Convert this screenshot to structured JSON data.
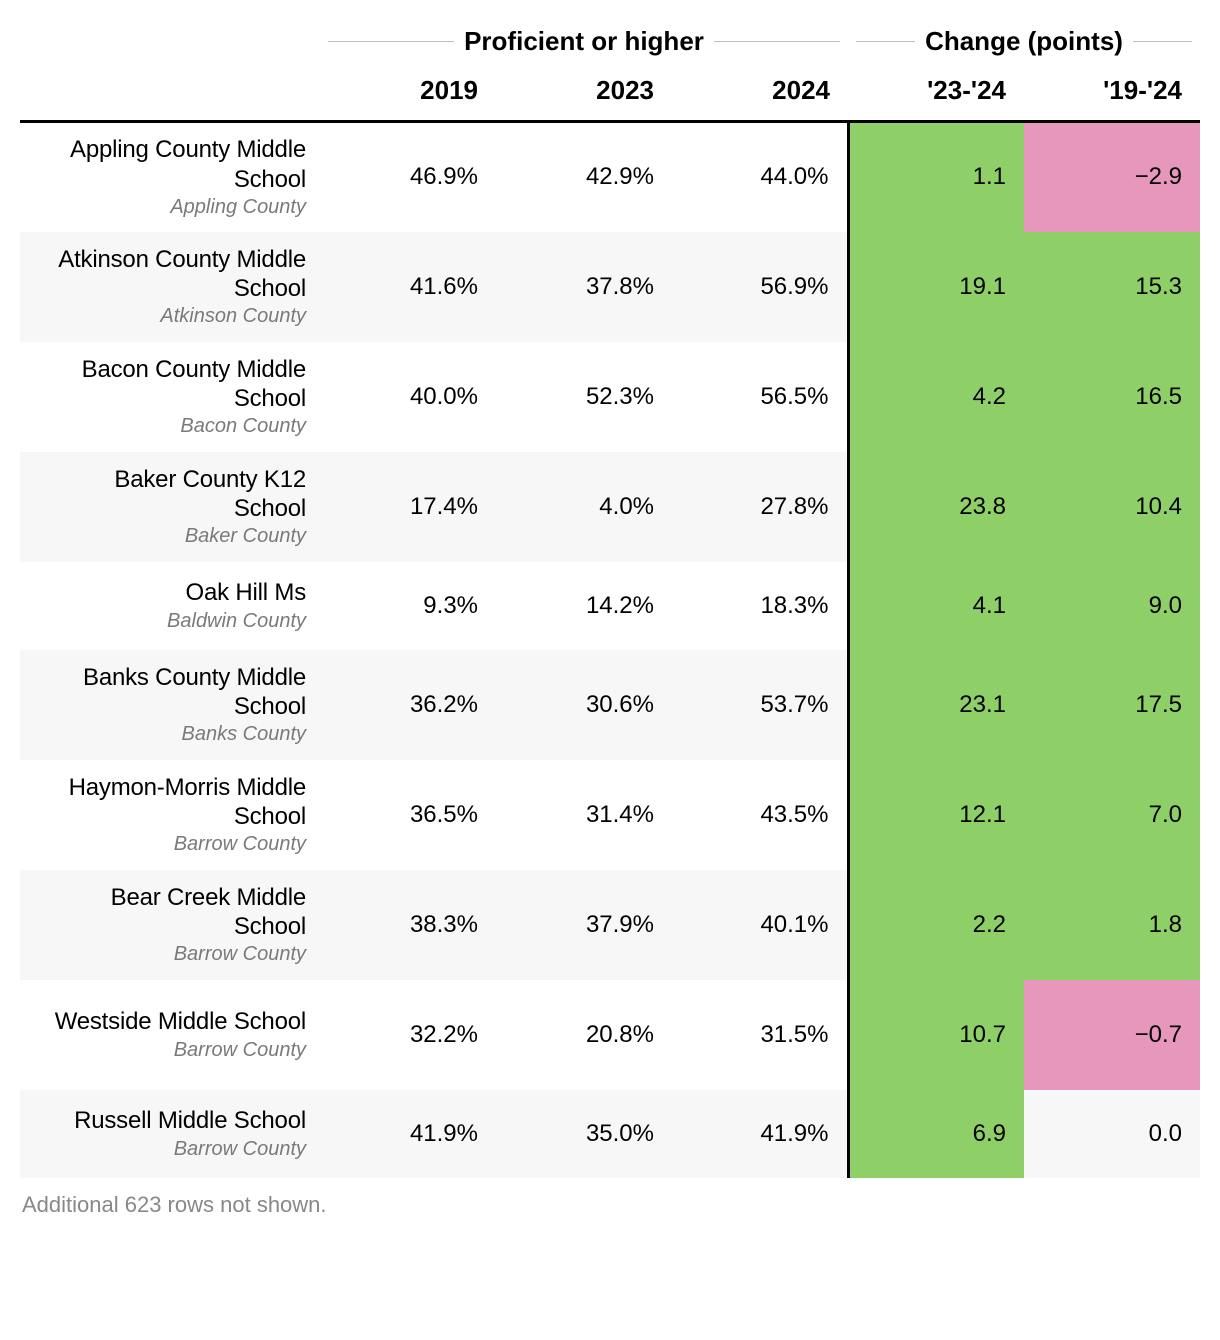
{
  "table": {
    "type": "table",
    "spanners": [
      {
        "label": "Proficient or higher",
        "cols": 3
      },
      {
        "label": "Change (points)",
        "cols": 2
      }
    ],
    "columns": [
      "2019",
      "2023",
      "2024",
      "'23-'24",
      "'19-'24"
    ],
    "colors": {
      "positive_bg": "#8ed067",
      "negative_bg": "#e797bb",
      "zero_bg": "#ffffff",
      "stripe_bg": "#f7f7f7",
      "border": "#000000",
      "spanner_line": "#bdbdbd",
      "county_text": "#7a7a7a",
      "footer_text": "#888888"
    },
    "font_sizes": {
      "header": 26,
      "body": 24,
      "county": 20,
      "footer": 22
    },
    "change_col_left_border": true,
    "rows": [
      {
        "school": "Appling County Middle School",
        "county": "Appling County",
        "y2019": "46.9%",
        "y2023": "42.9%",
        "y2024": "44.0%",
        "c2324": "1.1",
        "c2324_sign": "pos",
        "c1924": "−2.9",
        "c1924_sign": "neg"
      },
      {
        "school": "Atkinson County Middle School",
        "county": "Atkinson County",
        "y2019": "41.6%",
        "y2023": "37.8%",
        "y2024": "56.9%",
        "c2324": "19.1",
        "c2324_sign": "pos",
        "c1924": "15.3",
        "c1924_sign": "pos"
      },
      {
        "school": "Bacon County Middle School",
        "county": "Bacon County",
        "y2019": "40.0%",
        "y2023": "52.3%",
        "y2024": "56.5%",
        "c2324": "4.2",
        "c2324_sign": "pos",
        "c1924": "16.5",
        "c1924_sign": "pos"
      },
      {
        "school": "Baker County K12 School",
        "county": "Baker County",
        "y2019": "17.4%",
        "y2023": "4.0%",
        "y2024": "27.8%",
        "c2324": "23.8",
        "c2324_sign": "pos",
        "c1924": "10.4",
        "c1924_sign": "pos"
      },
      {
        "school": "Oak Hill Ms",
        "county": "Baldwin County",
        "short": true,
        "y2019": "9.3%",
        "y2023": "14.2%",
        "y2024": "18.3%",
        "c2324": "4.1",
        "c2324_sign": "pos",
        "c1924": "9.0",
        "c1924_sign": "pos"
      },
      {
        "school": "Banks County Middle School",
        "county": "Banks County",
        "y2019": "36.2%",
        "y2023": "30.6%",
        "y2024": "53.7%",
        "c2324": "23.1",
        "c2324_sign": "pos",
        "c1924": "17.5",
        "c1924_sign": "pos"
      },
      {
        "school": "Haymon-Morris Middle School",
        "county": "Barrow County",
        "y2019": "36.5%",
        "y2023": "31.4%",
        "y2024": "43.5%",
        "c2324": "12.1",
        "c2324_sign": "pos",
        "c1924": "7.0",
        "c1924_sign": "pos"
      },
      {
        "school": "Bear Creek Middle School",
        "county": "Barrow County",
        "y2019": "38.3%",
        "y2023": "37.9%",
        "y2024": "40.1%",
        "c2324": "2.2",
        "c2324_sign": "pos",
        "c1924": "1.8",
        "c1924_sign": "pos"
      },
      {
        "school": "Westside Middle School",
        "county": "Barrow County",
        "y2019": "32.2%",
        "y2023": "20.8%",
        "y2024": "31.5%",
        "c2324": "10.7",
        "c2324_sign": "pos",
        "c1924": "−0.7",
        "c1924_sign": "neg"
      },
      {
        "school": "Russell Middle School",
        "county": "Barrow County",
        "short": true,
        "y2019": "41.9%",
        "y2023": "35.0%",
        "y2024": "41.9%",
        "c2324": "6.9",
        "c2324_sign": "pos",
        "c1924": "0.0",
        "c1924_sign": "zero"
      }
    ],
    "footer_note": "Additional 623 rows not shown."
  }
}
